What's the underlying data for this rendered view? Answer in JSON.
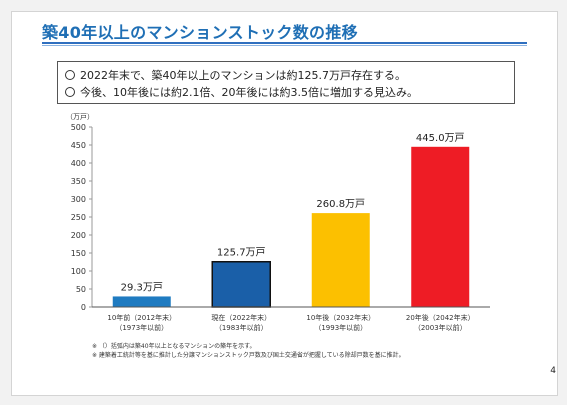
{
  "title": "築40年以上のマンションストック数の推移",
  "summary": {
    "line1": "2022年末で、築40年以上のマンションは約125.7万戸存在する。",
    "line2": "今後、10年後には約2.1倍、20年後には約3.5倍に増加する見込み。"
  },
  "chart_data": {
    "type": "bar",
    "ylabel": "（万戸）",
    "ylim": [
      0,
      500
    ],
    "yticks": [
      0,
      50,
      100,
      150,
      200,
      250,
      300,
      350,
      400,
      450,
      500
    ],
    "categories": [
      [
        "10年前（2012年末）",
        "（1973年以前）"
      ],
      [
        "現在（2022年末）",
        "（1983年以前）"
      ],
      [
        "10年後（2032年末）",
        "（1993年以前）"
      ],
      [
        "20年後（2042年末）",
        "（2003年以前）"
      ]
    ],
    "values": [
      29.3,
      125.7,
      260.8,
      445.0
    ],
    "value_labels": [
      "29.3万戸",
      "125.7万戸",
      "260.8万戸",
      "445.0万戸"
    ],
    "colors": [
      "#1f7bc1",
      "#1a5fa8",
      "#fcc000",
      "#ee1c25"
    ],
    "outline": [
      false,
      true,
      false,
      false
    ]
  },
  "footnotes": [
    "※ （）括弧内は築40年以上となるマンションの築年を示す。",
    "※ 建築着工統計等を基に推計した分譲マンションストック戸数及び国土交通省が把握している除却戸数を基に推計。"
  ],
  "page_number": "4"
}
